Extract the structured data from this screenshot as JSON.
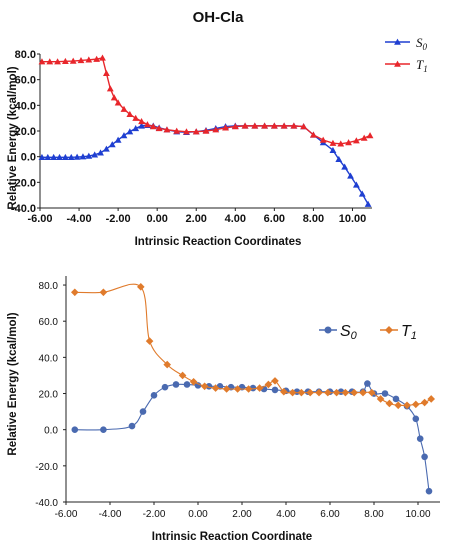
{
  "chart_data": [
    {
      "type": "line",
      "title": "OH-Cla",
      "xlabel": "Intrinsic Reaction Coordinates",
      "ylabel": "Relative Energy (kcal/mol)",
      "xlim": [
        -6,
        11
      ],
      "ylim": [
        -40,
        80
      ],
      "xticks": [
        "-6.00",
        "-4.00",
        "-2.00",
        "0.00",
        "2.00",
        "4.00",
        "6.00",
        "8.00",
        "10.00"
      ],
      "yticks": [
        "80.0",
        "60.0",
        "40.0",
        "20.0",
        "0.0",
        "-20.0",
        "-40.0"
      ],
      "legend_position": "top-right",
      "series": [
        {
          "name": "S",
          "name_sub": "0",
          "color": "#1f3fd1",
          "marker": "triangle",
          "x": [
            -5.9,
            -5.6,
            -5.3,
            -5.0,
            -4.7,
            -4.4,
            -4.1,
            -3.8,
            -3.5,
            -3.2,
            -2.9,
            -2.6,
            -2.3,
            -2.0,
            -1.7,
            -1.4,
            -1.1,
            -0.8,
            -0.5,
            -0.2,
            0.1,
            0.5,
            1.0,
            1.5,
            2.0,
            2.5,
            3.0,
            3.5,
            4.0,
            4.5,
            5.0,
            5.5,
            6.0,
            6.5,
            7.0,
            7.5,
            8.0,
            8.5,
            9.0,
            9.3,
            9.6,
            9.9,
            10.2,
            10.5,
            10.8
          ],
          "y": [
            -0.5,
            -0.5,
            -0.5,
            -0.5,
            -0.5,
            -0.5,
            -0.3,
            0.0,
            0.5,
            1.5,
            3.0,
            6.0,
            9.5,
            13.0,
            16.5,
            19.5,
            22.0,
            24.0,
            24.5,
            24.0,
            22.5,
            21.0,
            19.5,
            19.0,
            19.5,
            20.5,
            22.0,
            23.5,
            24.0,
            24.0,
            24.0,
            24.0,
            24.0,
            24.0,
            24.0,
            23.5,
            17.0,
            11.0,
            5.0,
            -2.0,
            -8.0,
            -15.0,
            -22.0,
            -29.0,
            -37.0
          ]
        },
        {
          "name": "T",
          "name_sub": "1",
          "color": "#e8262b",
          "marker": "triangle",
          "x": [
            -5.9,
            -5.5,
            -5.1,
            -4.7,
            -4.3,
            -3.9,
            -3.5,
            -3.1,
            -2.8,
            -2.6,
            -2.4,
            -2.2,
            -2.0,
            -1.7,
            -1.4,
            -1.1,
            -0.8,
            -0.5,
            -0.2,
            0.1,
            0.5,
            1.0,
            1.5,
            2.0,
            2.5,
            3.0,
            3.5,
            4.0,
            4.5,
            5.0,
            5.5,
            6.0,
            6.5,
            7.0,
            7.5,
            8.0,
            8.5,
            9.0,
            9.4,
            9.8,
            10.2,
            10.6,
            10.9
          ],
          "y": [
            74.0,
            74.0,
            74.0,
            74.3,
            74.5,
            75.0,
            75.5,
            76.0,
            77.0,
            65.0,
            53.0,
            46.0,
            42.0,
            37.0,
            33.0,
            30.0,
            27.5,
            25.0,
            23.5,
            22.0,
            21.0,
            20.0,
            19.5,
            19.5,
            20.0,
            21.0,
            22.5,
            23.5,
            24.0,
            24.0,
            24.0,
            24.0,
            24.0,
            24.0,
            23.5,
            17.0,
            13.0,
            10.5,
            10.0,
            11.0,
            12.5,
            14.5,
            16.5
          ]
        }
      ]
    },
    {
      "type": "line",
      "title": "",
      "xlabel": "Intrinsic Reaction Coordinate",
      "ylabel": "Relative Energy (kcal/mol)",
      "xlim": [
        -6,
        11
      ],
      "ylim": [
        -40,
        85
      ],
      "xticks": [
        "-6.00",
        "-4.00",
        "-2.00",
        "0.00",
        "2.00",
        "4.00",
        "6.00",
        "8.00",
        "10.00"
      ],
      "yticks": [
        "80.0",
        "60.0",
        "40.0",
        "20.0",
        "0.0",
        "-20.0",
        "-40.0"
      ],
      "legend_position": "top-right",
      "series": [
        {
          "name": "S",
          "name_sub": "0",
          "color": "#4a6ab0",
          "marker": "circle",
          "x": [
            -5.6,
            -4.3,
            -3.0,
            -2.5,
            -2.0,
            -1.5,
            -1.0,
            -0.5,
            0.0,
            0.5,
            1.0,
            1.5,
            2.0,
            2.5,
            3.0,
            3.5,
            4.0,
            4.5,
            5.0,
            5.5,
            6.0,
            6.5,
            7.0,
            7.5,
            7.7,
            8.0,
            8.5,
            9.0,
            9.5,
            9.9,
            10.1,
            10.3,
            10.5
          ],
          "y": [
            0.0,
            0.0,
            2.0,
            10.0,
            19.0,
            23.5,
            25.0,
            25.0,
            24.5,
            24.0,
            24.0,
            23.5,
            23.5,
            23.0,
            22.5,
            22.0,
            21.5,
            21.0,
            21.0,
            21.0,
            21.0,
            21.0,
            21.0,
            21.0,
            25.5,
            20.0,
            20.0,
            17.0,
            13.0,
            6.0,
            -5.0,
            -15.0,
            -34.0
          ]
        },
        {
          "name": "T",
          "name_sub": "1",
          "color": "#e07b2c",
          "marker": "diamond",
          "x": [
            -5.6,
            -4.3,
            -2.6,
            -2.2,
            -1.4,
            -0.7,
            -0.2,
            0.3,
            0.8,
            1.3,
            1.8,
            2.3,
            2.8,
            3.2,
            3.5,
            3.9,
            4.3,
            4.7,
            5.1,
            5.5,
            5.9,
            6.3,
            6.7,
            7.1,
            7.5,
            7.9,
            8.3,
            8.7,
            9.1,
            9.5,
            9.9,
            10.3,
            10.6
          ],
          "y": [
            76.0,
            76.0,
            79.0,
            49.0,
            36.0,
            30.0,
            26.5,
            24.0,
            23.0,
            22.5,
            22.5,
            22.5,
            23.0,
            25.0,
            27.0,
            21.0,
            20.5,
            20.5,
            20.5,
            20.5,
            20.5,
            20.5,
            20.5,
            20.5,
            20.5,
            20.5,
            17.0,
            14.5,
            13.5,
            13.5,
            14.0,
            15.0,
            17.0
          ]
        }
      ]
    }
  ]
}
